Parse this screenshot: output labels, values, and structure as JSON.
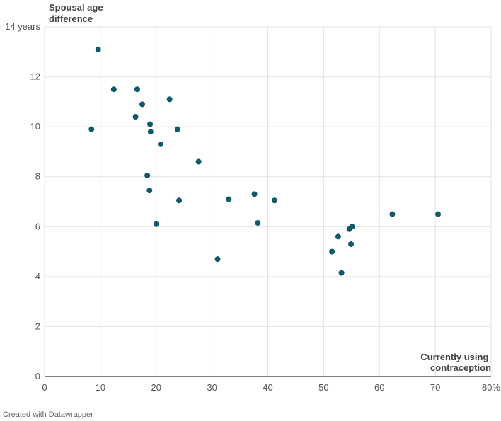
{
  "chart_data": {
    "type": "scatter",
    "ylabel": "Spousal age difference",
    "ylabel_lines": [
      "Spousal age",
      "difference"
    ],
    "xlabel": "Currently using contraception",
    "xlabel_lines": [
      "Currently using",
      "contraception"
    ],
    "xlim": [
      0,
      80
    ],
    "ylim": [
      0,
      14
    ],
    "x_ticks": [
      0,
      10,
      20,
      30,
      40,
      50,
      60,
      70,
      80
    ],
    "x_tick_labels": [
      "0",
      "10",
      "20",
      "30",
      "40",
      "50",
      "60",
      "70",
      "80%"
    ],
    "y_ticks": [
      0,
      2,
      4,
      6,
      8,
      10,
      12,
      14
    ],
    "y_tick_labels": [
      "0",
      "2",
      "4",
      "6",
      "8",
      "10",
      "12",
      "14 years"
    ],
    "grid": true,
    "point_color": "#11586b",
    "points": [
      {
        "x": 9.6,
        "y": 13.1
      },
      {
        "x": 12.4,
        "y": 11.5
      },
      {
        "x": 16.6,
        "y": 11.5
      },
      {
        "x": 22.4,
        "y": 11.1
      },
      {
        "x": 17.5,
        "y": 10.9
      },
      {
        "x": 16.3,
        "y": 10.4
      },
      {
        "x": 18.9,
        "y": 10.1
      },
      {
        "x": 8.4,
        "y": 9.9
      },
      {
        "x": 19.0,
        "y": 9.8
      },
      {
        "x": 23.8,
        "y": 9.9
      },
      {
        "x": 20.8,
        "y": 9.3
      },
      {
        "x": 27.6,
        "y": 8.6
      },
      {
        "x": 18.4,
        "y": 8.05
      },
      {
        "x": 18.8,
        "y": 7.45
      },
      {
        "x": 24.1,
        "y": 7.05
      },
      {
        "x": 33.0,
        "y": 7.1
      },
      {
        "x": 37.6,
        "y": 7.3
      },
      {
        "x": 41.2,
        "y": 7.05
      },
      {
        "x": 20.0,
        "y": 6.1
      },
      {
        "x": 38.2,
        "y": 6.15
      },
      {
        "x": 31.0,
        "y": 4.7
      },
      {
        "x": 52.6,
        "y": 5.6
      },
      {
        "x": 54.6,
        "y": 5.9
      },
      {
        "x": 55.1,
        "y": 6.0
      },
      {
        "x": 54.9,
        "y": 5.3
      },
      {
        "x": 51.5,
        "y": 5.0
      },
      {
        "x": 53.2,
        "y": 4.15
      },
      {
        "x": 62.3,
        "y": 6.5
      },
      {
        "x": 70.5,
        "y": 6.5
      }
    ]
  },
  "footer": {
    "credit": "Created with Datawrapper"
  }
}
